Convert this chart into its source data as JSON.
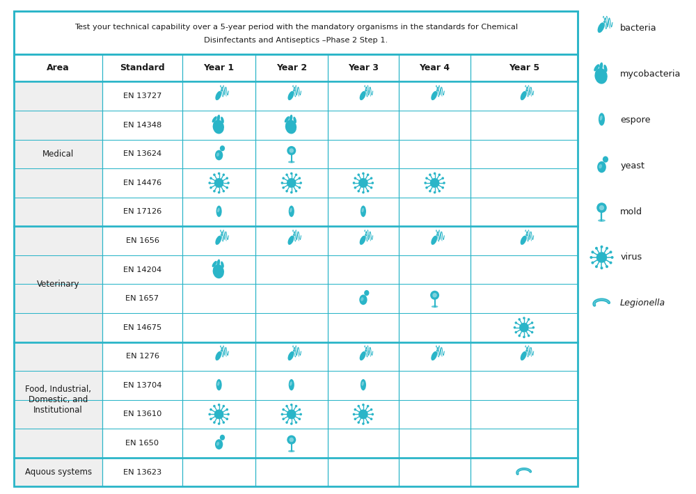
{
  "title_line1": "Test your technical capability over a 5-year period with the mandatory organisms in the standards for Chemical",
  "title_line2": "Disinfectants and Antiseptics –Phase 2 Step 1.",
  "headers": [
    "Area",
    "Standard",
    "Year 1",
    "Year 2",
    "Year 3",
    "Year 4",
    "Year 5"
  ],
  "teal": "#2ab5c8",
  "light_gray": "#efefef",
  "white": "#ffffff",
  "legend_items": [
    {
      "label": "bacteria",
      "type": "bacteria",
      "italic": false
    },
    {
      "label": "mycobacteria",
      "type": "mycobacteria",
      "italic": false
    },
    {
      "label": "espore",
      "type": "espore",
      "italic": false
    },
    {
      "label": "yeast",
      "type": "yeast",
      "italic": false
    },
    {
      "label": "mold",
      "type": "mold",
      "italic": false
    },
    {
      "label": "virus",
      "type": "virus",
      "italic": false
    },
    {
      "label": "Legionella",
      "type": "legionella",
      "italic": true
    }
  ],
  "rows": [
    {
      "area": "Medical",
      "standards": [
        {
          "std": "EN 13727",
          "cells": [
            "bacteria",
            "bacteria",
            "bacteria",
            "bacteria",
            "bacteria"
          ]
        },
        {
          "std": "EN 14348",
          "cells": [
            "mycobacteria",
            "mycobacteria",
            "",
            "",
            ""
          ]
        },
        {
          "std": "EN 13624",
          "cells": [
            "yeast",
            "mold",
            "",
            "",
            ""
          ]
        },
        {
          "std": "EN 14476",
          "cells": [
            "virus",
            "virus",
            "virus",
            "virus",
            ""
          ]
        },
        {
          "std": "EN 17126",
          "cells": [
            "espore",
            "espore",
            "espore",
            "",
            ""
          ]
        }
      ]
    },
    {
      "area": "Veterinary",
      "standards": [
        {
          "std": "EN 1656",
          "cells": [
            "bacteria",
            "bacteria",
            "bacteria",
            "bacteria",
            "bacteria"
          ]
        },
        {
          "std": "EN 14204",
          "cells": [
            "mycobacteria",
            "",
            "",
            "",
            ""
          ]
        },
        {
          "std": "EN 1657",
          "cells": [
            "",
            "",
            "yeast",
            "mold",
            ""
          ]
        },
        {
          "std": "EN 14675",
          "cells": [
            "",
            "",
            "",
            "",
            "virus"
          ]
        }
      ]
    },
    {
      "area": "Food, Industrial,\nDomestic, and\nInstitutional",
      "standards": [
        {
          "std": "EN 1276",
          "cells": [
            "bacteria",
            "bacteria",
            "bacteria",
            "bacteria",
            "bacteria"
          ]
        },
        {
          "std": "EN 13704",
          "cells": [
            "espore",
            "espore",
            "espore",
            "",
            ""
          ]
        },
        {
          "std": "EN 13610",
          "cells": [
            "virus",
            "virus",
            "virus",
            "",
            ""
          ]
        },
        {
          "std": "EN 1650",
          "cells": [
            "yeast",
            "mold",
            "",
            "",
            ""
          ]
        }
      ]
    },
    {
      "area": "Aquous systems",
      "standards": [
        {
          "std": "EN 13623",
          "cells": [
            "",
            "",
            "",
            "",
            "legionella"
          ]
        }
      ]
    }
  ]
}
